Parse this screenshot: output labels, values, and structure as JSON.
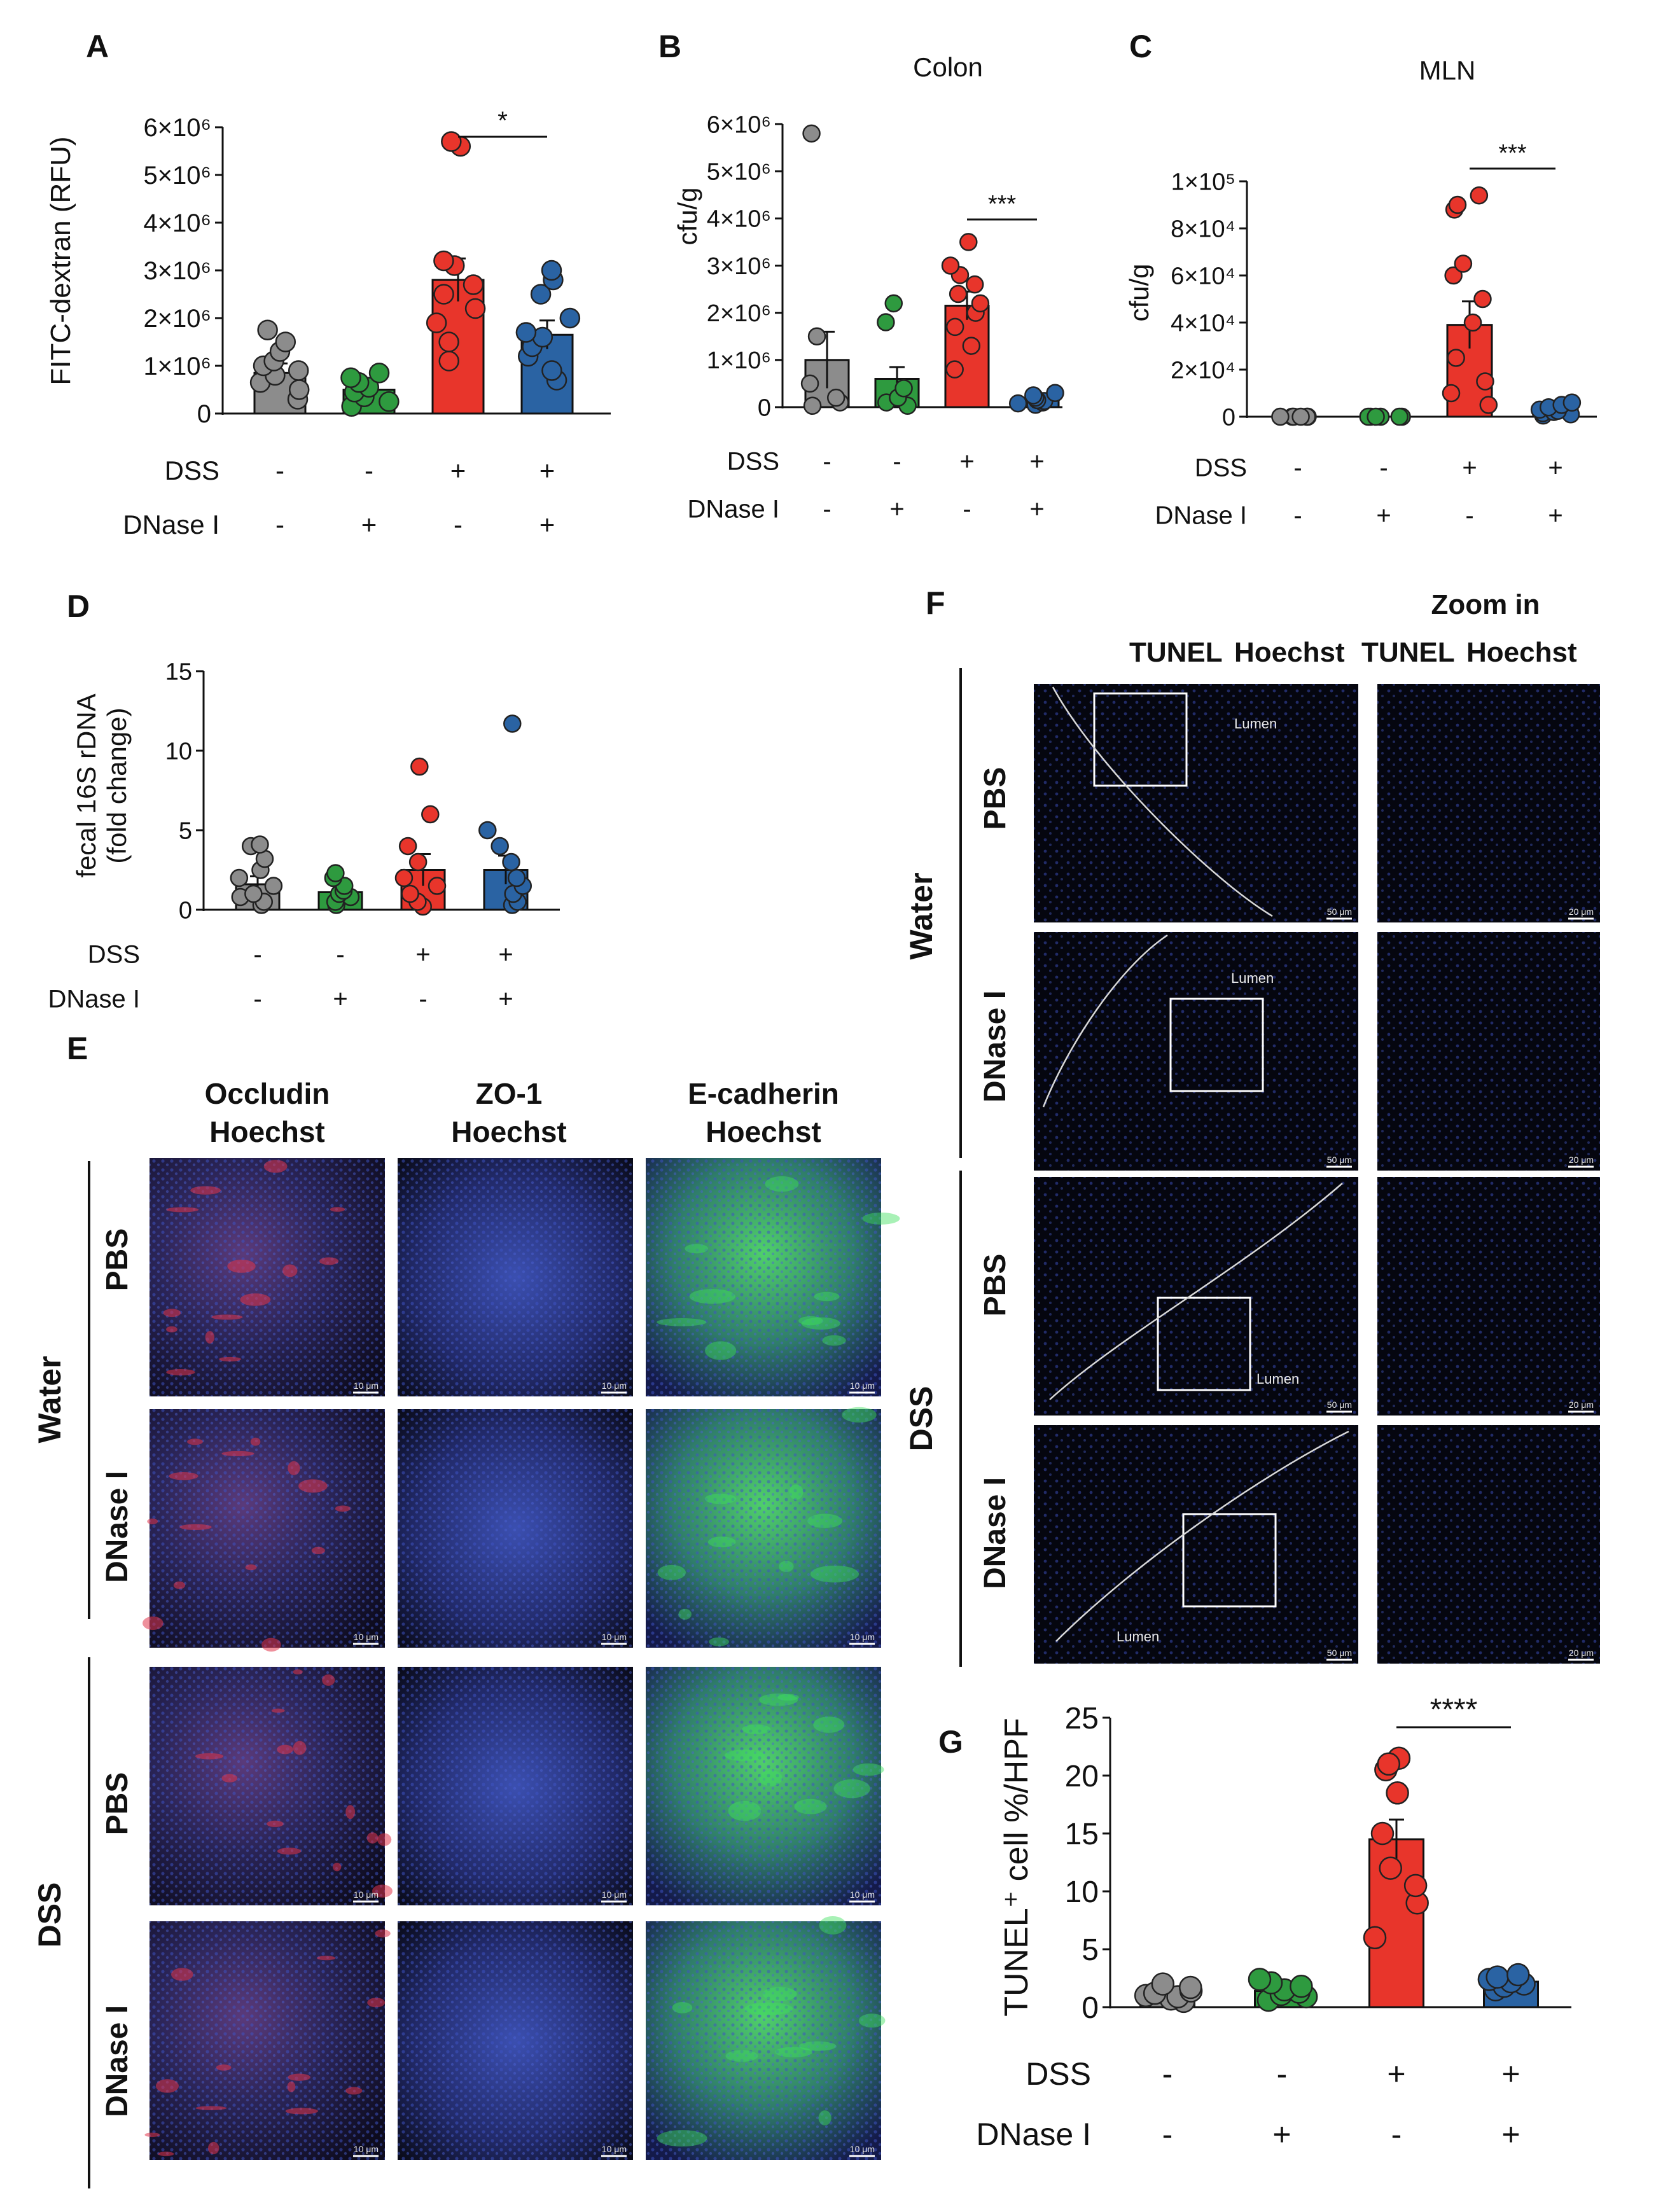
{
  "panels": {
    "A": "A",
    "B": "B",
    "C": "C",
    "D": "D",
    "E": "E",
    "F": "F",
    "G": "G"
  },
  "treatment_rows": {
    "dss_label": "DSS",
    "dnase_label": "DNase I",
    "dss_signs": [
      "-",
      "-",
      "+",
      "+"
    ],
    "dnase_signs": [
      "-",
      "+",
      "-",
      "+"
    ]
  },
  "colors": {
    "group1": "#8c8c8c",
    "group2": "#2e9a3f",
    "group3": "#e8352b",
    "group4": "#2a63a3"
  },
  "chart_data": [
    {
      "panel": "A",
      "type": "bar",
      "title": "",
      "ylabel": "FITC-dextran (RFU)",
      "yticks": [
        "0",
        "1×10⁶",
        "2×10⁶",
        "3×10⁶",
        "4×10⁶",
        "5×10⁶",
        "6×10⁶"
      ],
      "ylim": [
        0,
        6000000
      ],
      "values": [
        850000,
        500000,
        2800000,
        1650000
      ],
      "errors": [
        200000,
        150000,
        450000,
        300000
      ],
      "points": [
        [
          300000,
          500000,
          650000,
          800000,
          900000,
          1000000,
          1100000,
          1300000,
          1500000,
          1750000
        ],
        [
          150000,
          250000,
          350000,
          450000,
          550000,
          650000,
          750000,
          850000
        ],
        [
          1100000,
          1500000,
          1900000,
          2200000,
          2500000,
          2700000,
          3100000,
          3200000,
          5600000,
          5700000
        ],
        [
          700000,
          900000,
          1200000,
          1400000,
          1600000,
          1700000,
          2000000,
          2500000,
          2800000,
          3000000
        ]
      ],
      "significance": {
        "label": "*",
        "between": [
          2,
          3
        ]
      }
    },
    {
      "panel": "B",
      "type": "bar",
      "title": "Colon",
      "ylabel": "cfu/g",
      "yticks": [
        "0",
        "1×10⁶",
        "2×10⁶",
        "3×10⁶",
        "4×10⁶",
        "5×10⁶",
        "6×10⁶"
      ],
      "ylim": [
        0,
        6000000
      ],
      "values": [
        1000000,
        600000,
        2150000,
        200000
      ],
      "errors": [
        600000,
        250000,
        300000,
        50000
      ],
      "points": [
        [
          30000,
          100000,
          200000,
          500000,
          1500000,
          5800000
        ],
        [
          30000,
          100000,
          200000,
          400000,
          1800000,
          2200000
        ],
        [
          800000,
          1300000,
          1700000,
          2000000,
          2200000,
          2400000,
          2600000,
          2800000,
          3000000,
          3500000
        ],
        [
          50000,
          80000,
          100000,
          130000,
          150000,
          200000,
          250000,
          300000
        ]
      ],
      "significance": {
        "label": "***",
        "between": [
          2,
          3
        ]
      }
    },
    {
      "panel": "C",
      "type": "bar",
      "title": "MLN",
      "ylabel": "cfu/g",
      "yticks": [
        "0",
        "2×10⁴",
        "4×10⁴",
        "6×10⁴",
        "8×10⁴",
        "1×10⁵"
      ],
      "ylim": [
        0,
        100000
      ],
      "values": [
        0,
        0,
        39000,
        3000
      ],
      "errors": [
        0,
        0,
        10000,
        1000
      ],
      "points": [
        [
          0,
          0,
          0,
          0,
          0,
          0
        ],
        [
          0,
          0,
          0,
          0,
          0,
          0
        ],
        [
          5000,
          10000,
          15000,
          25000,
          40000,
          50000,
          60000,
          65000,
          88000,
          90000,
          94000
        ],
        [
          500,
          1000,
          1500,
          2000,
          2500,
          3000,
          4000,
          5000,
          6000
        ]
      ],
      "significance": {
        "label": "***",
        "between": [
          2,
          3
        ]
      }
    },
    {
      "panel": "D",
      "type": "bar",
      "title": "",
      "ylabel": "fecal 16S rDNA",
      "ylabel2": "(fold change)",
      "yticks": [
        "0",
        "5",
        "10",
        "15"
      ],
      "ylim": [
        0,
        15
      ],
      "values": [
        1.6,
        1.1,
        2.5,
        2.5
      ],
      "errors": [
        0.5,
        0.3,
        1.0,
        0.9
      ],
      "points": [
        [
          0.3,
          0.5,
          0.8,
          1.0,
          1.5,
          2.0,
          2.5,
          3.2,
          4.0,
          4.1
        ],
        [
          0.3,
          0.5,
          0.8,
          1.0,
          1.2,
          1.5,
          2.0,
          2.3
        ],
        [
          0.2,
          0.5,
          1.0,
          1.5,
          2.0,
          3.0,
          4.0,
          6.0,
          9.0
        ],
        [
          0.3,
          0.5,
          1.0,
          1.5,
          2.0,
          3.0,
          4.0,
          5.0,
          11.7
        ]
      ],
      "significance": null
    },
    {
      "panel": "G",
      "type": "bar",
      "title": "",
      "ylabel": "TUNEL⁺ cell %/HPF",
      "yticks": [
        "0",
        "5",
        "10",
        "15",
        "20",
        "25"
      ],
      "ylim": [
        0,
        25
      ],
      "values": [
        1.1,
        1.4,
        14.5,
        2.2
      ],
      "errors": [
        0.2,
        0.2,
        1.7,
        0.2
      ],
      "points": [
        [
          0.5,
          0.7,
          0.9,
          1.0,
          1.2,
          1.4,
          1.7,
          2.0
        ],
        [
          0.6,
          0.9,
          1.1,
          1.3,
          1.5,
          1.8,
          2.1,
          2.4
        ],
        [
          6.0,
          9.0,
          10.5,
          12.0,
          15.0,
          18.5,
          20.5,
          21.5,
          21.0
        ],
        [
          1.5,
          1.8,
          2.0,
          2.2,
          2.4,
          2.6,
          2.8
        ]
      ],
      "significance": {
        "label": "****",
        "between": [
          2,
          3
        ]
      }
    }
  ],
  "panel_E": {
    "col_labels": [
      {
        "top": "Occludin",
        "bottom": "Hoechst",
        "color": "#e8352b"
      },
      {
        "top": "ZO-1",
        "bottom": "Hoechst",
        "color": "#2e9a3f"
      },
      {
        "top": "E-cadherin",
        "bottom": "Hoechst",
        "color": "#2e9a3f"
      }
    ],
    "hoechst_color": "#2b3e9e",
    "group_labels": [
      "Water",
      "DSS"
    ],
    "row_labels": [
      "PBS",
      "DNase I",
      "PBS",
      "DNase I"
    ],
    "scale_bar": "10 μm"
  },
  "panel_F": {
    "col_header_left": {
      "green": "TUNEL",
      "blue": "Hoechst"
    },
    "col_header_right_top": "Zoom in",
    "col_header_right": {
      "green": "TUNEL",
      "blue": "Hoechst"
    },
    "group_labels": [
      "Water",
      "DSS"
    ],
    "row_labels": [
      "PBS",
      "DNase I",
      "PBS",
      "DNase I"
    ],
    "lumen_label": "Lumen",
    "scale_bar_left": "50 μm",
    "scale_bar_right": "20 μm"
  }
}
